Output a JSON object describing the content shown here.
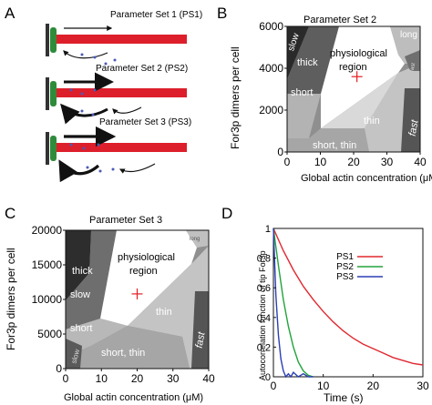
{
  "panels": {
    "A": {
      "letter": "A",
      "labels": [
        "Parameter Set 1 (PS1)",
        "Parameter Set 2 (PS2)",
        "Parameter Set 3 (PS3)"
      ]
    },
    "B": {
      "letter": "B",
      "title": "Parameter Set 2",
      "xlabel": "Global actin concentration (μM)",
      "ylabel": "For3p dimers per cell",
      "xticks": [
        "0",
        "10",
        "20",
        "30",
        "40"
      ],
      "yticks": [
        "0",
        "2000",
        "4000",
        "6000"
      ],
      "regions": {
        "slow": "slow",
        "thick": "thick",
        "physiological": "physiological",
        "region": "region",
        "long": "long",
        "fast_small": "fast",
        "short": "short",
        "thin": "thin",
        "fast": "fast",
        "short_thin": "short, thin"
      }
    },
    "C": {
      "letter": "C",
      "title": "Parameter Set 3",
      "xlabel": "Global actin concentration (μM)",
      "ylabel": "For3p dimers per cell",
      "xticks": [
        "0",
        "10",
        "20",
        "30",
        "40"
      ],
      "yticks": [
        "0",
        "5000",
        "10000",
        "15000",
        "20000"
      ],
      "regions": {
        "thick": "thick",
        "physiological": "physiological",
        "region": "region",
        "long": "long",
        "slow": "slow",
        "thin": "thin",
        "short": "short",
        "fast": "fast",
        "slow_small": "slow",
        "short_thin": "short, thin"
      }
    },
    "D": {
      "letter": "D",
      "xlabel": "Time (s)",
      "ylabel": "Autocorrelation function of tip For3p"
    }
  },
  "colors": {
    "filament": "#dd1f2b",
    "membrane": "#2e8b3a",
    "ps1": "#e0282f",
    "ps2": "#22a33b",
    "ps3": "#2b3fb5",
    "marker": "#e51d23"
  },
  "chart_data": [
    {
      "type": "area",
      "title": "Parameter Set 2",
      "xlabel": "Global actin concentration (μM)",
      "ylabel": "For3p dimers per cell",
      "xlim": [
        0,
        40
      ],
      "ylim": [
        0,
        6000
      ],
      "marker": {
        "x": 21,
        "y": 3600
      }
    },
    {
      "type": "area",
      "title": "Parameter Set 3",
      "xlabel": "Global actin concentration (μM)",
      "ylabel": "For3p dimers per cell",
      "xlim": [
        0,
        40
      ],
      "ylim": [
        0,
        20000
      ],
      "marker": {
        "x": 20,
        "y": 10800
      }
    },
    {
      "type": "line",
      "xlabel": "Time (s)",
      "ylabel": "Autocorrelation function of tip For3p",
      "xlim": [
        0,
        30
      ],
      "ylim": [
        0,
        1
      ],
      "xticks": [
        0,
        10,
        20,
        30
      ],
      "yticks": [
        0,
        0.2,
        0.4,
        0.6,
        0.8,
        1
      ],
      "series": [
        {
          "name": "PS1",
          "x": [
            0,
            2,
            4,
            6,
            8,
            10,
            12,
            14,
            16,
            18,
            20,
            22,
            24,
            26,
            28,
            30
          ],
          "y": [
            1.0,
            0.85,
            0.72,
            0.61,
            0.52,
            0.44,
            0.37,
            0.31,
            0.26,
            0.22,
            0.19,
            0.16,
            0.13,
            0.11,
            0.09,
            0.08
          ]
        },
        {
          "name": "PS2",
          "x": [
            0,
            1,
            2,
            3,
            4,
            5,
            6,
            7,
            8
          ],
          "y": [
            1.0,
            0.75,
            0.52,
            0.34,
            0.2,
            0.1,
            0.04,
            0.01,
            0.0
          ]
        },
        {
          "name": "PS3",
          "x": [
            0,
            0.5,
            1,
            1.5,
            2,
            2.5,
            3,
            3.5,
            4,
            5,
            6,
            7,
            8
          ],
          "y": [
            1.0,
            0.55,
            0.28,
            0.12,
            0.04,
            0.0,
            0.02,
            0.0,
            0.03,
            0.0,
            0.02,
            0.0,
            0.0
          ]
        }
      ]
    }
  ]
}
